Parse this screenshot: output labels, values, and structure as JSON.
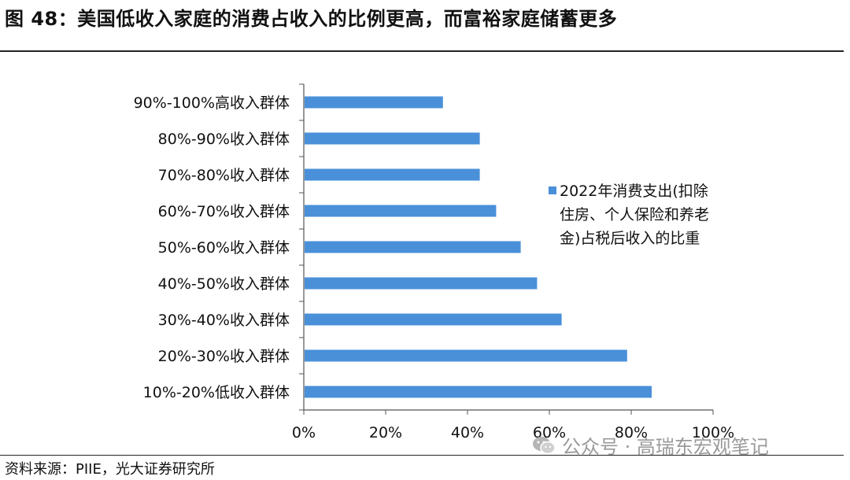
{
  "title": "图 48：美国低收入家庭的消费占收入的比例更高，而富裕家庭储蓄更多",
  "source": "资料来源：PIIE，光大证券研究所",
  "watermark": {
    "icon": "wechat-icon",
    "text": "公众号 · 高瑞东宏观笔记"
  },
  "chart_data": {
    "type": "bar",
    "orientation": "horizontal",
    "categories": [
      "90%-100%高收入群体",
      "80%-90%收入群体",
      "70%-80%收入群体",
      "60%-70%收入群体",
      "50%-60%收入群体",
      "40%-50%收入群体",
      "30%-40%收入群体",
      "20%-30%收入群体",
      "10%-20%低收入群体"
    ],
    "series": [
      {
        "name": "2022年消费支出(扣除住房、个人保险和养老金)占税后收入的比重",
        "legend_lines": [
          "2022年消费支出(扣除",
          "住房、个人保险和养老",
          "金)占税后收入的比重"
        ],
        "values": [
          0.34,
          0.43,
          0.43,
          0.47,
          0.53,
          0.57,
          0.63,
          0.79,
          0.85
        ],
        "color": "#4a90d9"
      }
    ],
    "xlim": [
      0,
      1
    ],
    "x_ticks": [
      0,
      0.2,
      0.4,
      0.6,
      0.8,
      1.0
    ],
    "x_tick_labels": [
      "0%",
      "20%",
      "40%",
      "60%",
      "80%",
      "100%"
    ],
    "grid": false,
    "legend_position": "right"
  }
}
